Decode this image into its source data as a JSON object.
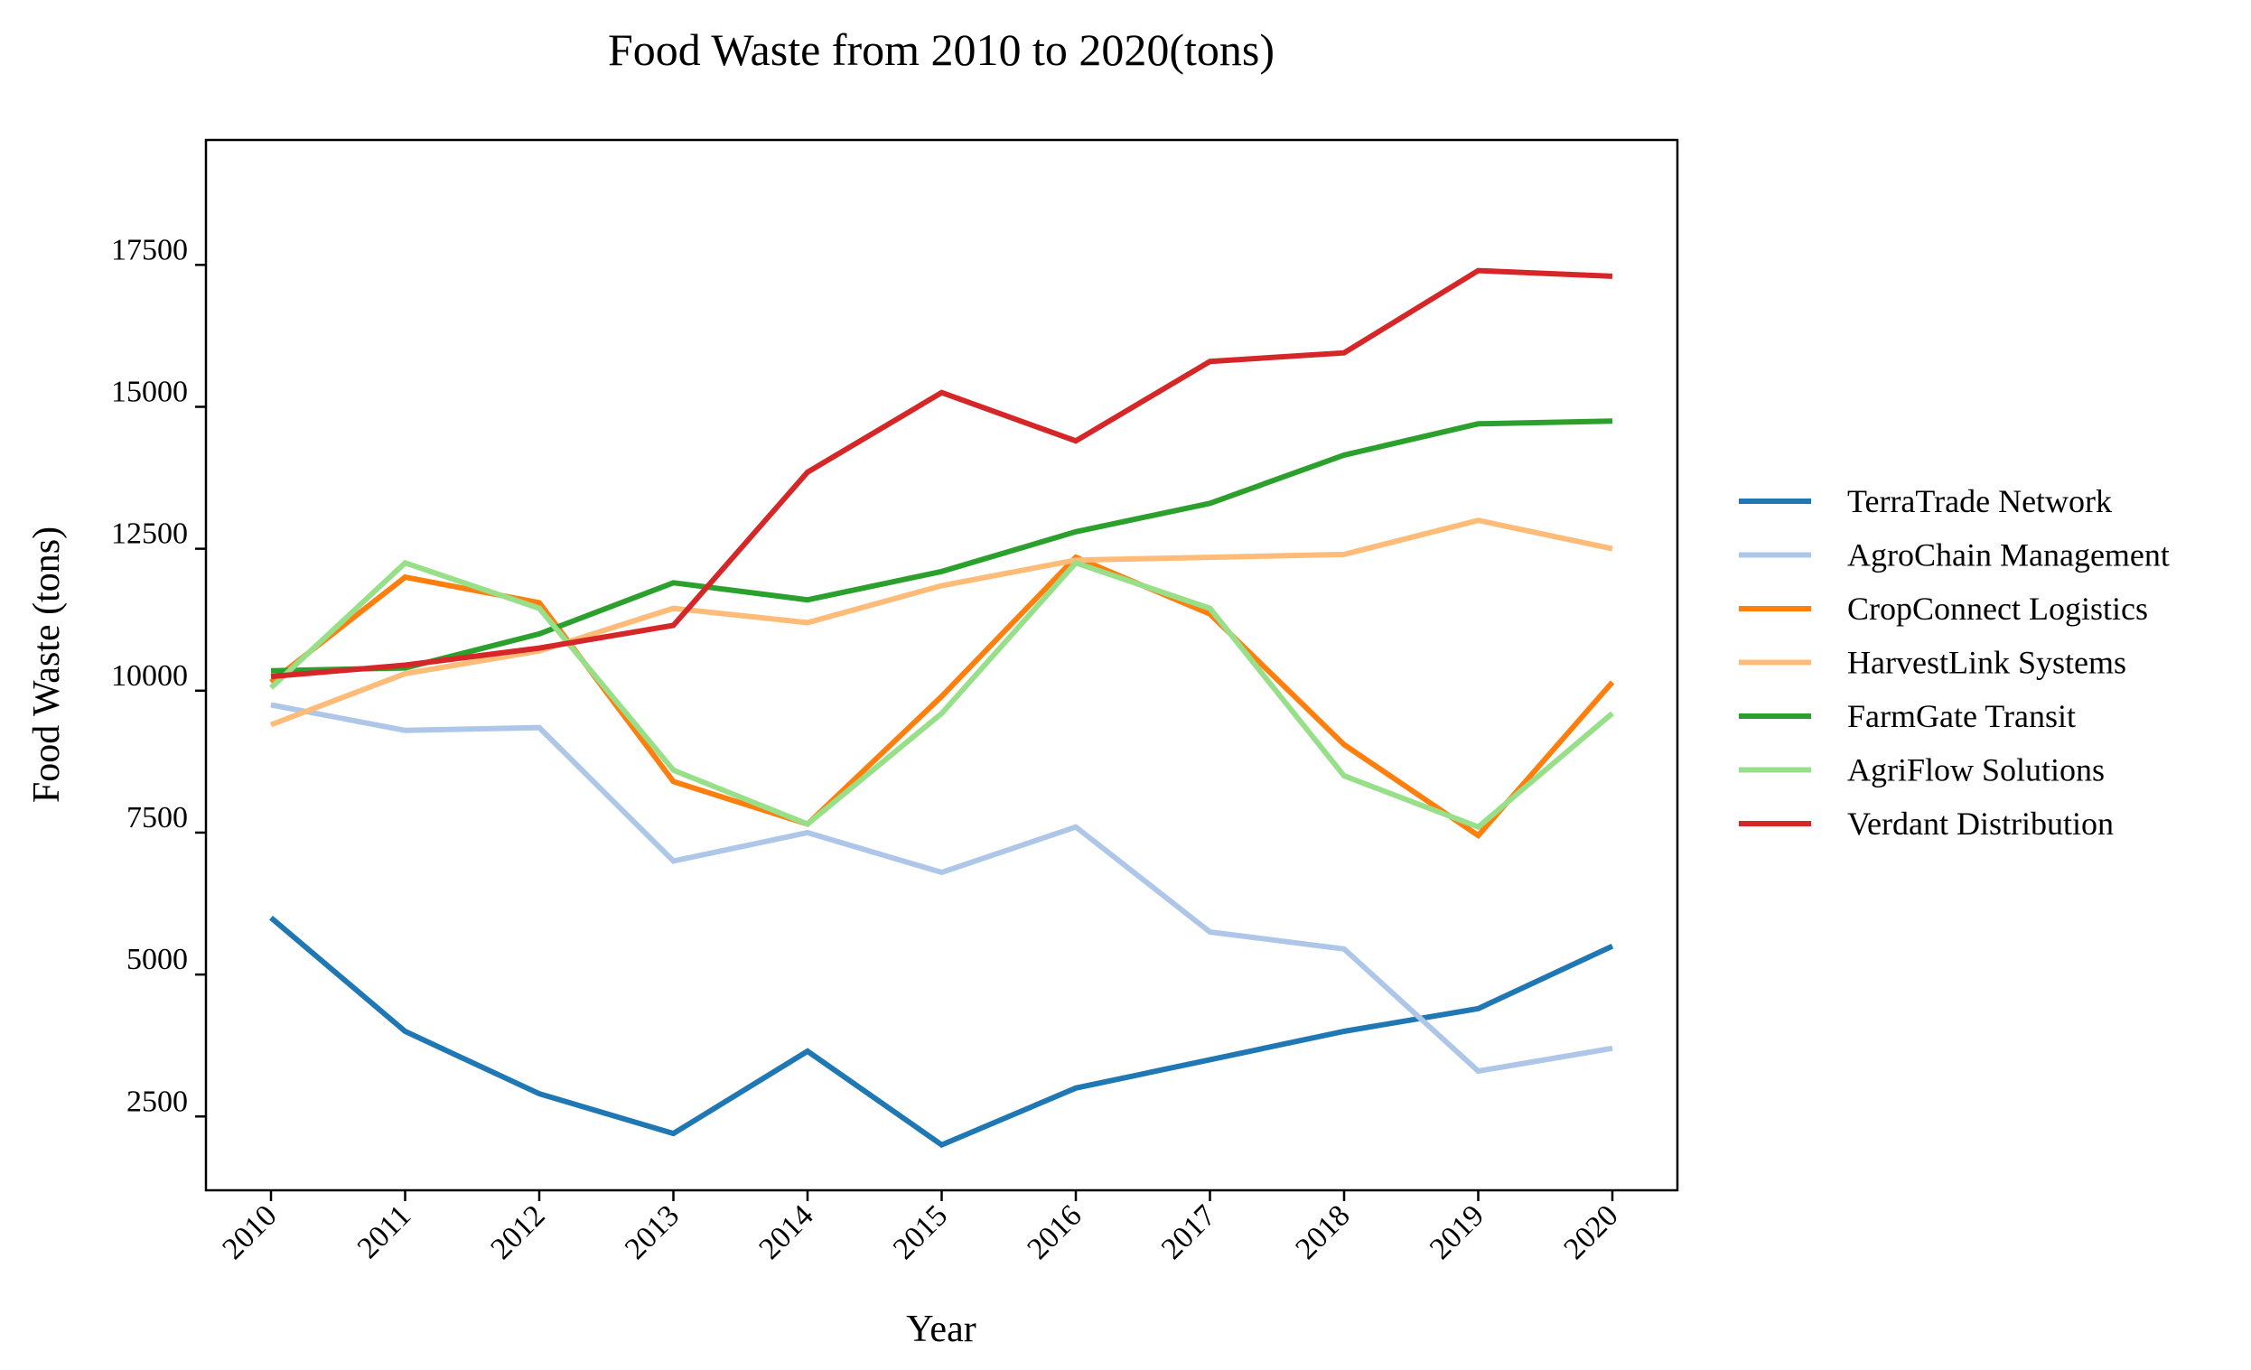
{
  "chart_data": {
    "type": "line",
    "title": "Food Waste from 2010 to 2020(tons)",
    "xlabel": "Year",
    "ylabel": "Food Waste (tons)",
    "x": [
      "2010",
      "2011",
      "2012",
      "2013",
      "2014",
      "2015",
      "2016",
      "2017",
      "2018",
      "2019",
      "2020"
    ],
    "yticks": [
      2500,
      5000,
      7500,
      10000,
      12500,
      15000,
      17500
    ],
    "ylim": [
      1200,
      19700
    ],
    "grid": false,
    "legend_position": "right",
    "series": [
      {
        "name": "TerraTrade Network",
        "color": "#1f77b4",
        "values": [
          6000,
          4000,
          2900,
          2200,
          3650,
          2000,
          3000,
          3500,
          4000,
          4400,
          5500
        ]
      },
      {
        "name": "AgroChain Management",
        "color": "#aec7e8",
        "values": [
          9750,
          9300,
          9350,
          7000,
          7500,
          6800,
          7600,
          5750,
          5450,
          3300,
          3700
        ]
      },
      {
        "name": "CropConnect Logistics",
        "color": "#ff7f0e",
        "values": [
          10150,
          12000,
          11550,
          8400,
          7650,
          9900,
          12350,
          11350,
          9050,
          7450,
          10150
        ]
      },
      {
        "name": "HarvestLink Systems",
        "color": "#ffbb78",
        "values": [
          9400,
          10300,
          10700,
          11450,
          11200,
          11850,
          12300,
          12350,
          12400,
          13000,
          12500
        ]
      },
      {
        "name": "FarmGate Transit",
        "color": "#2ca02c",
        "values": [
          10350,
          10400,
          11000,
          11900,
          11600,
          12100,
          12800,
          13300,
          14150,
          14700,
          14750
        ]
      },
      {
        "name": "AgriFlow Solutions",
        "color": "#98df8a",
        "values": [
          10050,
          12250,
          11450,
          8600,
          7650,
          9600,
          12250,
          11450,
          8500,
          7600,
          9600
        ]
      },
      {
        "name": "Verdant Distribution",
        "color": "#d62728",
        "values": [
          10250,
          10450,
          10750,
          11150,
          13850,
          15250,
          14400,
          15800,
          15950,
          17400,
          17300
        ]
      }
    ]
  }
}
